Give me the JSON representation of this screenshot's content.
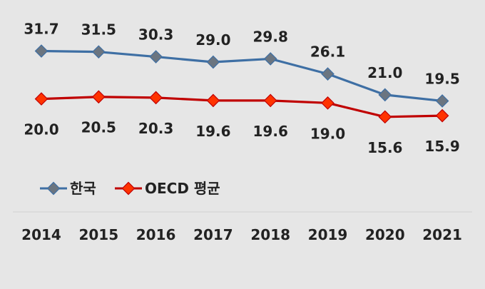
{
  "chart_data": {
    "type": "line",
    "categories": [
      "2014",
      "2015",
      "2016",
      "2017",
      "2018",
      "2019",
      "2020",
      "2021"
    ],
    "series": [
      {
        "name": "한국",
        "values": [
          31.7,
          31.5,
          30.3,
          29.0,
          29.8,
          26.1,
          21.0,
          19.5
        ],
        "value_labels": [
          "31.7",
          "31.5",
          "30.3",
          "29.0",
          "29.8",
          "26.1",
          "21.0",
          "19.5"
        ],
        "color": "#3e6fa4",
        "marker_color": "#6b7580",
        "label_position": "above"
      },
      {
        "name": "OECD 평균",
        "values": [
          20.0,
          20.5,
          20.3,
          19.6,
          19.6,
          19.0,
          15.6,
          15.9
        ],
        "value_labels": [
          "20.0",
          "20.5",
          "20.3",
          "19.6",
          "19.6",
          "19.0",
          "15.6",
          "15.9"
        ],
        "color": "#c00000",
        "marker_color": "#ff3300",
        "label_position": "below"
      }
    ],
    "title": "",
    "xlabel": "",
    "ylabel": "",
    "ylim": [
      15,
      32
    ],
    "grid": false,
    "legend": "bottom-left",
    "background": "#e6e6e6"
  }
}
